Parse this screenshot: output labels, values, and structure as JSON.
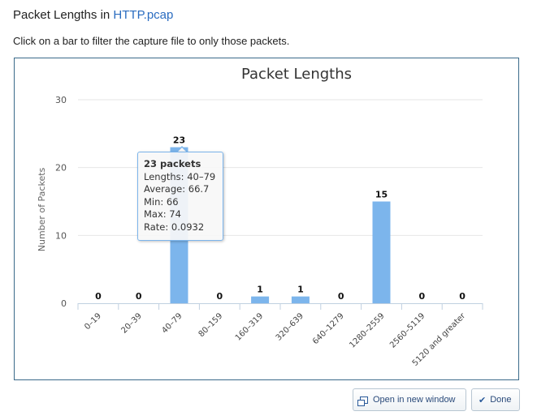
{
  "header": {
    "title_prefix": "Packet Lengths in ",
    "file_link": "HTTP.pcap",
    "instructions": "Click on a bar to filter the capture file to only those packets."
  },
  "chart_data": {
    "type": "bar",
    "title": "Packet Lengths",
    "xlabel": "",
    "ylabel": "Number of Packets",
    "ylim": [
      0,
      30
    ],
    "yticks": [
      0,
      10,
      20,
      30
    ],
    "categories": [
      "0–19",
      "20–39",
      "40–79",
      "80–159",
      "160–319",
      "320–639",
      "640–1279",
      "1280–2559",
      "2560–5119",
      "5120 and greater"
    ],
    "values": [
      0,
      0,
      23,
      0,
      1,
      1,
      0,
      15,
      0,
      0
    ],
    "bar_color": "#7cb5ec",
    "grid": true
  },
  "tooltip": {
    "title": "23 packets",
    "lengths": "Lengths: 40–79",
    "average": "Average: 66.7",
    "min": "Min: 66",
    "max": "Max: 74",
    "rate": "Rate: 0.0932"
  },
  "buttons": {
    "open_window": "Open in new window",
    "done": "Done"
  },
  "icons": {
    "open_window": "popout-icon",
    "done": "checkmark-icon"
  }
}
